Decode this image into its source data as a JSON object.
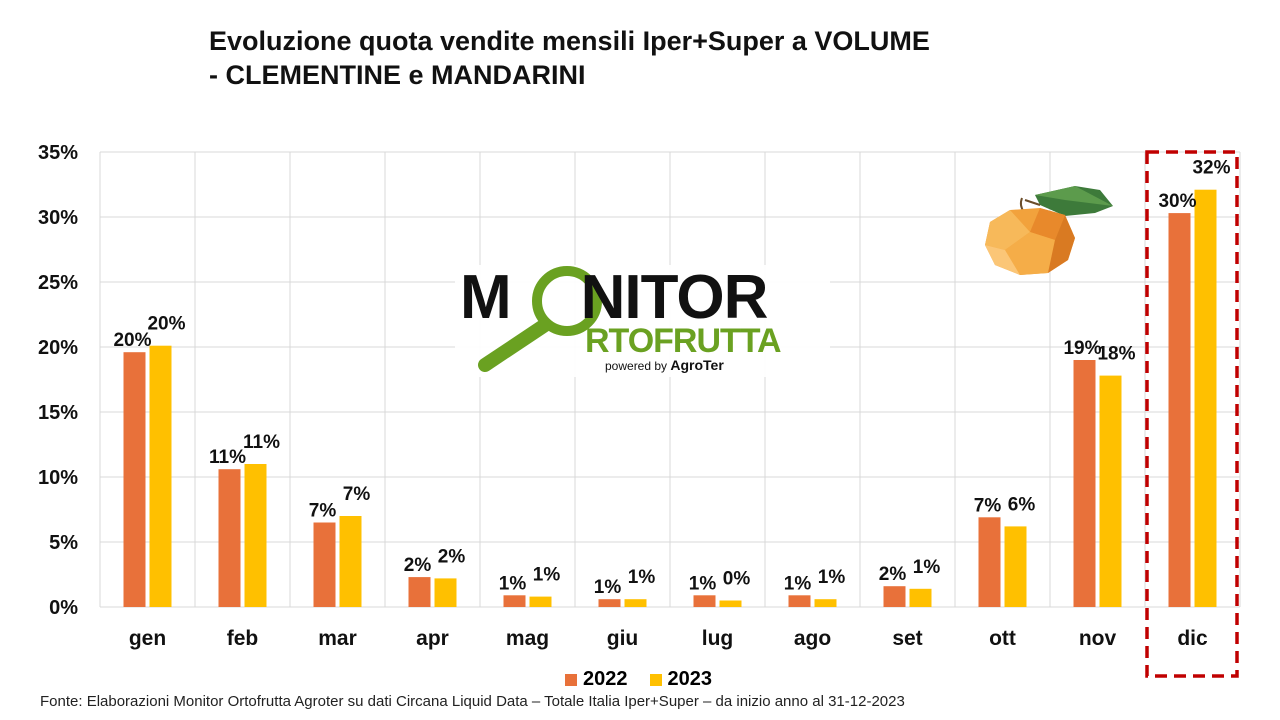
{
  "title_line1": "Evoluzione quota vendite mensili Iper+Super a VOLUME",
  "title_line2": "- CLEMENTINE e MANDARINI",
  "source": "Fonte: Elaborazioni Monitor Ortofrutta Agroter su dati Circana Liquid Data – Totale Italia Iper+Super –  da inizio anno al 31-12-2023",
  "logo": {
    "word_top_a": "M",
    "word_top_b": "NITOR",
    "word_bottom": "RTOFRUTTA",
    "powered_prefix": "powered by ",
    "powered_brand": "AgroTer"
  },
  "colors": {
    "series_2022": "#E8713A",
    "series_2023": "#FFC000",
    "highlight_box": "#C00000",
    "grid": "#D9D9D9",
    "logo_green": "#6AA121"
  },
  "chart_data": {
    "type": "bar",
    "categories": [
      "gen",
      "feb",
      "mar",
      "apr",
      "mag",
      "giu",
      "lug",
      "ago",
      "set",
      "ott",
      "nov",
      "dic"
    ],
    "series": [
      {
        "name": "2022",
        "values": [
          19.6,
          10.6,
          6.5,
          2.3,
          0.9,
          0.6,
          0.9,
          0.9,
          1.6,
          6.9,
          19.0,
          30.3
        ],
        "labels": [
          "20%",
          "11%",
          "7%",
          "2%",
          "1%",
          "1%",
          "1%",
          "1%",
          "2%",
          "7%",
          "19%",
          "30%"
        ]
      },
      {
        "name": "2023",
        "values": [
          20.1,
          11.0,
          7.0,
          2.2,
          0.8,
          0.6,
          0.5,
          0.6,
          1.4,
          6.2,
          17.8,
          32.1
        ],
        "labels": [
          "20%",
          "11%",
          "7%",
          "2%",
          "1%",
          "1%",
          "0%",
          "1%",
          "1%",
          "6%",
          "18%",
          "32%"
        ]
      }
    ],
    "y_ticks": [
      "0%",
      "5%",
      "10%",
      "15%",
      "20%",
      "25%",
      "30%",
      "35%"
    ],
    "ylim": [
      0,
      35
    ],
    "grid": true,
    "legend_position": "bottom",
    "highlight_category": "dic"
  }
}
